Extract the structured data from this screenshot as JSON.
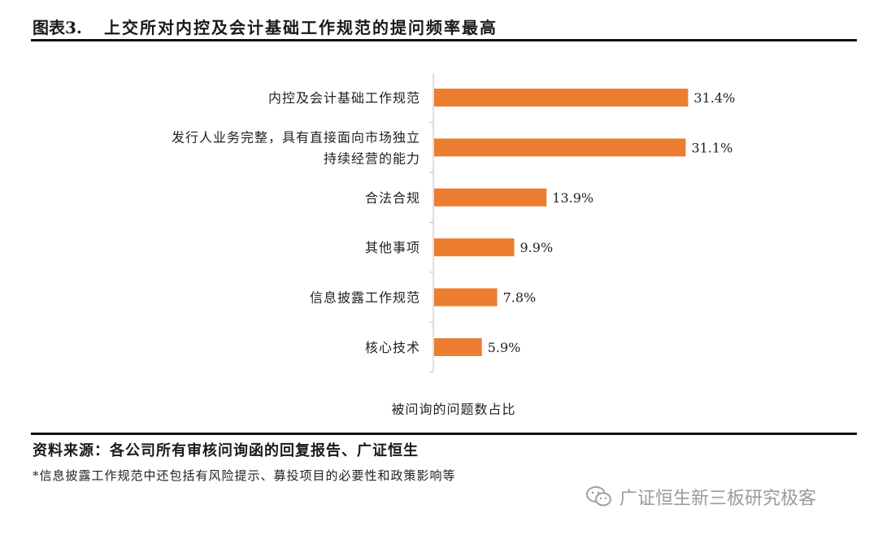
{
  "figure": {
    "label": "图表3.",
    "title": "上交所对内控及会计基础工作规范的提问频率最高"
  },
  "chart_data": {
    "type": "bar",
    "orientation": "horizontal",
    "categories": [
      [
        "内控及会计基础工作规范"
      ],
      [
        "发行人业务完整，具有直接面向市场独立",
        "持续经营的能力"
      ],
      [
        "合法合规"
      ],
      [
        "其他事项"
      ],
      [
        "信息披露工作规范"
      ],
      [
        "核心技术"
      ]
    ],
    "values": [
      31.4,
      31.1,
      13.9,
      9.9,
      7.8,
      5.9
    ],
    "value_labels": [
      "31.4%",
      "31.1%",
      "13.9%",
      "9.9%",
      "7.8%",
      "5.9%"
    ],
    "xlabel": "被问询的问题数占比",
    "xlim": [
      0,
      35
    ],
    "grid": false,
    "bar_color": "#ED7D31",
    "axis_color": "#bfbfbf"
  },
  "source": "资料来源：各公司所有审核问询函的回复报告、广证恒生",
  "note": "*信息披露工作规范中还包括有风险提示、募投项目的必要性和政策影响等",
  "watermark": {
    "icon": "wechat-icon",
    "text": "广证恒生新三板研究极客"
  }
}
